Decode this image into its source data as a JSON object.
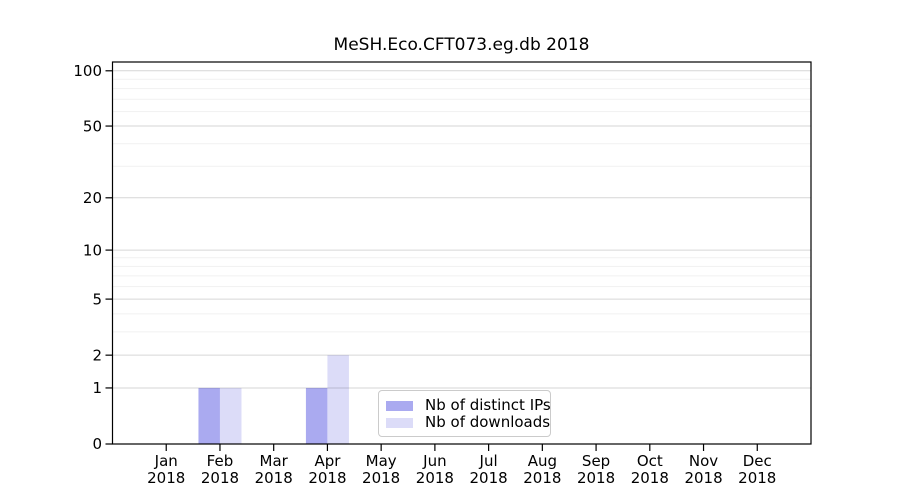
{
  "chart_data": {
    "type": "bar",
    "title": "MeSH.Eco.CFT073.eg.db 2018",
    "categories": [
      "Jan",
      "Feb",
      "Mar",
      "Apr",
      "May",
      "Jun",
      "Jul",
      "Aug",
      "Sep",
      "Oct",
      "Nov",
      "Dec"
    ],
    "category_year": "2018",
    "series": [
      {
        "name": "Nb of distinct IPs",
        "color": "#aaaaf0",
        "values": [
          0,
          1,
          0,
          1,
          0,
          0,
          0,
          0,
          0,
          0,
          0,
          0
        ]
      },
      {
        "name": "Nb of downloads",
        "color": "#dcdcf8",
        "values": [
          0,
          1,
          0,
          2,
          0,
          0,
          0,
          0,
          0,
          0,
          0,
          0
        ]
      }
    ],
    "xlabel": "",
    "ylabel": "",
    "yscale": "log1p",
    "yticks": [
      0,
      1,
      2,
      5,
      10,
      20,
      50,
      100
    ],
    "yticks_minor": [
      3,
      4,
      6,
      7,
      8,
      9,
      30,
      40,
      60,
      70,
      80,
      90
    ],
    "ylim": [
      0,
      110
    ],
    "grid": "both",
    "legend_position": "lower center"
  },
  "colors": {
    "axis": "#000000",
    "grid_major": "rgba(0,0,0,0.16)",
    "grid_minor": "rgba(0,0,0,0.06)",
    "text": "#000000"
  }
}
